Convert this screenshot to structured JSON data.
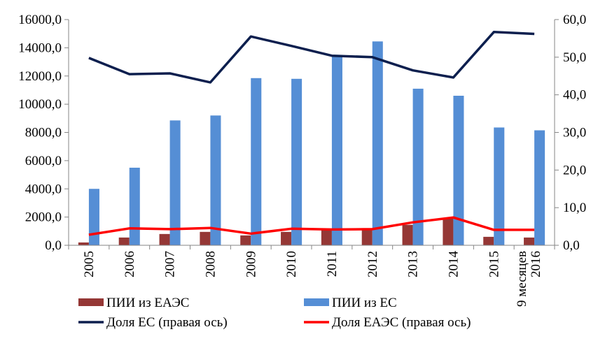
{
  "chart_data": {
    "type": "bar",
    "categories": [
      "2005",
      "2006",
      "2007",
      "2008",
      "2009",
      "2010",
      "2011",
      "2012",
      "2013",
      "2014",
      "2015",
      "9 месяцев 2016"
    ],
    "series": [
      {
        "name": "ПИИ из ЕАЭС",
        "kind": "bar",
        "axis": "left",
        "color": "#953735",
        "values": [
          200,
          550,
          800,
          950,
          700,
          950,
          1100,
          1100,
          1450,
          1950,
          600,
          550
        ]
      },
      {
        "name": "ПИИ из ЕС",
        "kind": "bar",
        "axis": "left",
        "color": "#558ED5",
        "values": [
          4000,
          5500,
          8850,
          9200,
          11850,
          11800,
          13500,
          14450,
          11100,
          10600,
          8350,
          8150
        ]
      },
      {
        "name": "Доля ЕС  (правая ось)",
        "kind": "line",
        "axis": "right",
        "color": "#0D1F4E",
        "values": [
          49.8,
          45.5,
          45.7,
          43.3,
          55.5,
          53.0,
          50.4,
          50.0,
          46.5,
          44.6,
          56.7,
          56.2
        ]
      },
      {
        "name": "Доля ЕАЭС (правая ось)",
        "kind": "line",
        "axis": "right",
        "color": "#FF0000",
        "values": [
          2.8,
          4.5,
          4.3,
          4.6,
          3.1,
          4.4,
          4.2,
          4.3,
          6.1,
          7.4,
          4.1,
          4.1
        ]
      }
    ],
    "y_left": {
      "lim": [
        0,
        16000
      ],
      "ticks": [
        "0,0",
        "2000,0",
        "4000,0",
        "6000,0",
        "8000,0",
        "10000,0",
        "12000,0",
        "14000,0",
        "16000,0"
      ]
    },
    "y_right": {
      "lim": [
        0,
        60
      ],
      "ticks": [
        "0,0",
        "10,0",
        "20,0",
        "30,0",
        "40,0",
        "50,0",
        "60,0"
      ]
    },
    "grid": false,
    "legend_position": "bottom"
  }
}
